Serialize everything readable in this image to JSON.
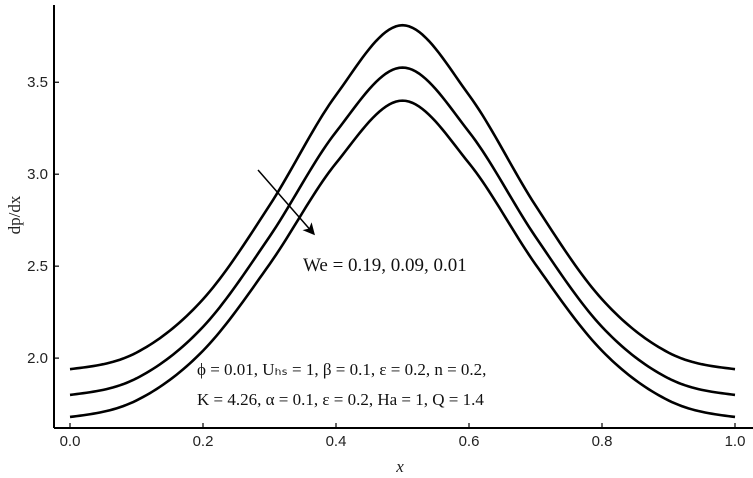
{
  "chart_data": {
    "type": "line",
    "xlabel": "x",
    "ylabel": "dp/dx",
    "xlim": [
      0.0,
      1.0
    ],
    "ylim": [
      1.62,
      3.92
    ],
    "x_ticks": [
      "0.0",
      "0.2",
      "0.4",
      "0.6",
      "0.8",
      "1.0"
    ],
    "y_ticks": [
      "2.0",
      "2.5",
      "3.0",
      "3.5"
    ],
    "x_tick_values": [
      0.0,
      0.2,
      0.4,
      0.6,
      0.8,
      1.0
    ],
    "y_tick_values": [
      2.0,
      2.5,
      3.0,
      3.5
    ],
    "grid": false,
    "series": [
      {
        "we": 0.19,
        "x": [
          0.0,
          0.1,
          0.2,
          0.3,
          0.4,
          0.5,
          0.6,
          0.7,
          0.8,
          0.9,
          1.0
        ],
        "values": [
          1.94,
          2.03,
          2.32,
          2.83,
          3.43,
          3.81,
          3.43,
          2.83,
          2.32,
          2.03,
          1.94
        ]
      },
      {
        "we": 0.09,
        "x": [
          0.0,
          0.1,
          0.2,
          0.3,
          0.4,
          0.5,
          0.6,
          0.7,
          0.8,
          0.9,
          1.0
        ],
        "values": [
          1.8,
          1.89,
          2.17,
          2.66,
          3.23,
          3.58,
          3.23,
          2.66,
          2.17,
          1.89,
          1.8
        ]
      },
      {
        "we": 0.01,
        "x": [
          0.0,
          0.1,
          0.2,
          0.3,
          0.4,
          0.5,
          0.6,
          0.7,
          0.8,
          0.9,
          1.0
        ],
        "values": [
          1.68,
          1.77,
          2.04,
          2.51,
          3.06,
          3.4,
          3.06,
          2.51,
          2.04,
          1.77,
          1.68
        ]
      }
    ],
    "annotations": {
      "arrow_label": "We = 0.19, 0.09, 0.01",
      "params_line1": "ϕ = 0.01, Uₕₛ = 1, β = 0.1, ε = 0.2, n = 0.2,",
      "params_line2": "K = 4.26, α = 0.1, ε = 0.2, Ha = 1, Q = 1.4"
    }
  }
}
